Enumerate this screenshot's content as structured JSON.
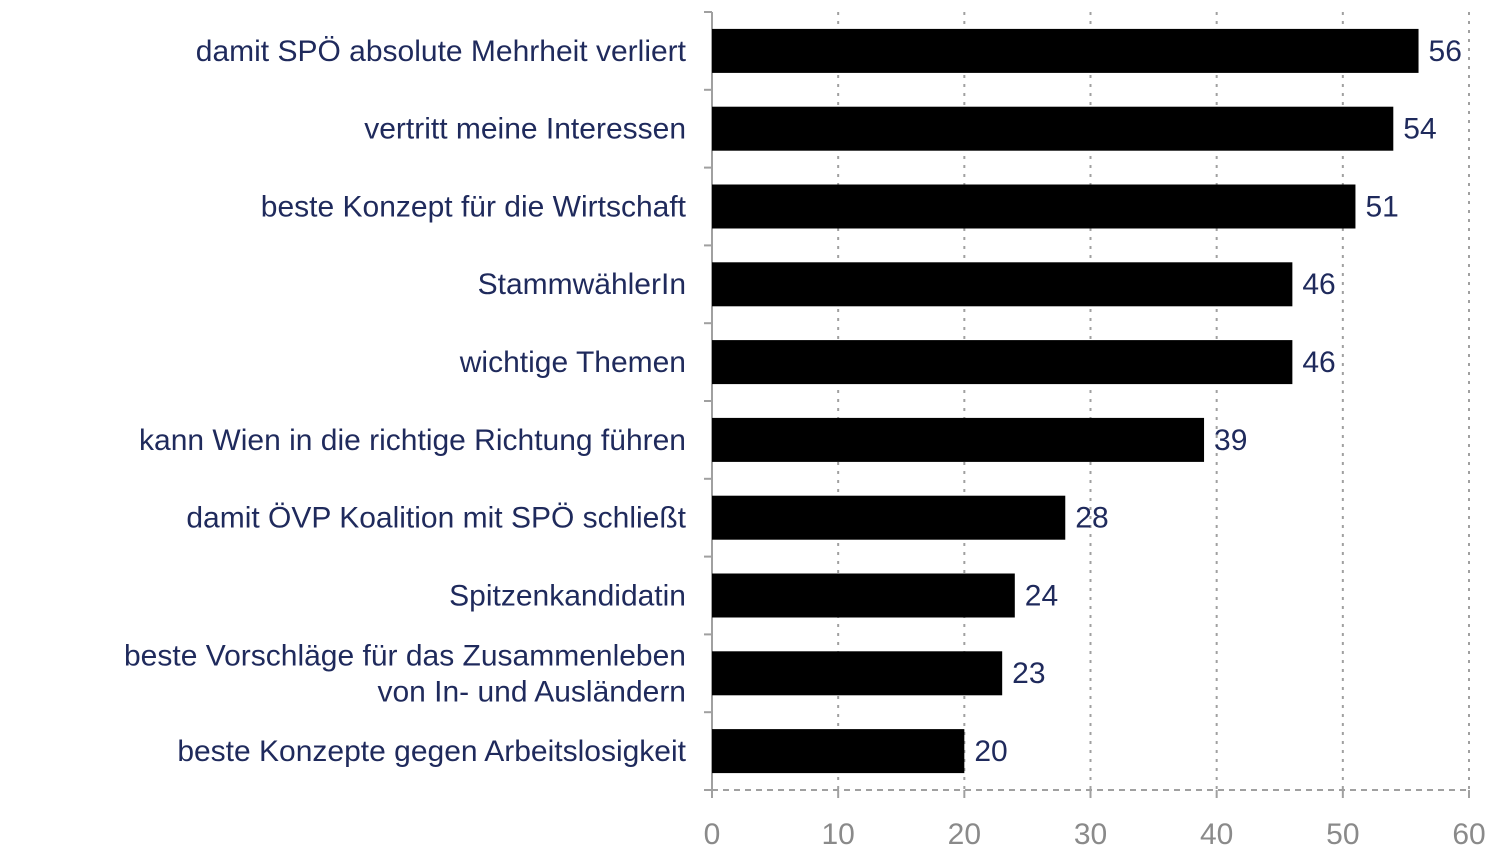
{
  "chart_data": {
    "type": "bar",
    "orientation": "horizontal",
    "categories": [
      "damit SPÖ absolute Mehrheit verliert",
      "vertritt meine Interessen",
      "beste Konzept für die Wirtschaft",
      "StammwählerIn",
      "wichtige Themen",
      "kann Wien in die richtige Richtung führen",
      "damit ÖVP Koalition mit SPÖ schließt",
      "Spitzenkandidatin",
      "beste Vorschläge für das Zusammenleben\nvon In- und Ausländern",
      "beste Konzepte gegen Arbeitslosigkeit"
    ],
    "values": [
      56,
      54,
      51,
      46,
      46,
      39,
      28,
      24,
      23,
      20
    ],
    "color": "#000000",
    "xlim": [
      0,
      60
    ],
    "xticks": [
      0,
      10,
      20,
      30,
      40,
      50,
      60
    ],
    "grid": true
  }
}
